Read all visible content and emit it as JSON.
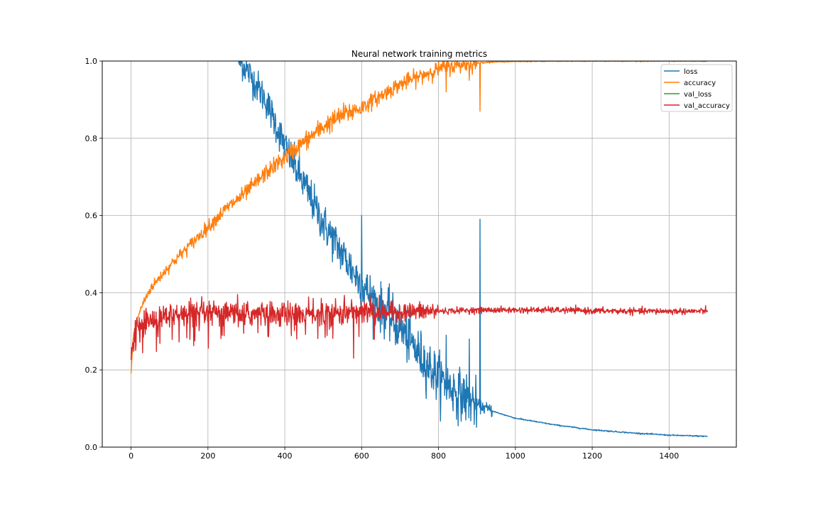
{
  "chart_data": {
    "type": "line",
    "title": "Neural network training metrics",
    "xlabel": "",
    "ylabel": "",
    "xlim": [
      -75,
      1575
    ],
    "ylim": [
      0.0,
      1.0
    ],
    "x_ticks": [
      0,
      200,
      400,
      600,
      800,
      1000,
      1200,
      1400
    ],
    "y_ticks": [
      "0.0",
      "0.2",
      "0.4",
      "0.6",
      "0.8",
      "1.0"
    ],
    "grid": true,
    "legend_position": "top-right",
    "colors": {
      "loss": "#1f77b4",
      "accuracy": "#ff7f0e",
      "val_loss": "#2ca02c",
      "val_accuracy": "#d62728"
    },
    "series": [
      {
        "name": "loss",
        "x": [
          280,
          300,
          350,
          400,
          450,
          500,
          550,
          600,
          650,
          700,
          750,
          800,
          850,
          900,
          950,
          1000,
          1100,
          1200,
          1300,
          1400,
          1500
        ],
        "values": [
          1.0,
          0.98,
          0.9,
          0.78,
          0.68,
          0.58,
          0.5,
          0.42,
          0.36,
          0.31,
          0.24,
          0.18,
          0.14,
          0.11,
          0.09,
          0.075,
          0.058,
          0.045,
          0.037,
          0.031,
          0.028
        ],
        "spikes": [
          [
            600,
            0.6
          ],
          [
            908,
            0.59
          ],
          [
            820,
            0.29
          ],
          [
            880,
            0.28
          ]
        ]
      },
      {
        "name": "accuracy",
        "x": [
          0,
          5,
          15,
          30,
          50,
          100,
          150,
          200,
          250,
          300,
          350,
          400,
          450,
          500,
          550,
          600,
          650,
          700,
          750,
          800,
          850,
          900,
          950,
          1000,
          1100,
          1200,
          1300,
          1400,
          1500
        ],
        "values": [
          0.19,
          0.28,
          0.33,
          0.37,
          0.41,
          0.47,
          0.52,
          0.57,
          0.62,
          0.66,
          0.71,
          0.75,
          0.79,
          0.83,
          0.86,
          0.88,
          0.91,
          0.94,
          0.96,
          0.98,
          0.99,
          0.995,
          0.998,
          0.999,
          1.0,
          1.0,
          1.0,
          1.0,
          1.0
        ],
        "dips": [
          [
            908,
            0.87
          ],
          [
            820,
            0.92
          ],
          [
            880,
            0.95
          ]
        ]
      },
      {
        "name": "val_loss",
        "x": [],
        "values": []
      },
      {
        "name": "val_accuracy",
        "x": [
          0,
          5,
          15,
          30,
          50,
          100,
          200,
          300,
          400,
          500,
          600,
          700,
          800,
          900,
          1000,
          1100,
          1200,
          1300,
          1400,
          1500
        ],
        "values": [
          0.22,
          0.28,
          0.31,
          0.32,
          0.33,
          0.34,
          0.345,
          0.345,
          0.345,
          0.345,
          0.35,
          0.35,
          0.352,
          0.355,
          0.355,
          0.355,
          0.353,
          0.352,
          0.352,
          0.352
        ]
      }
    ]
  }
}
